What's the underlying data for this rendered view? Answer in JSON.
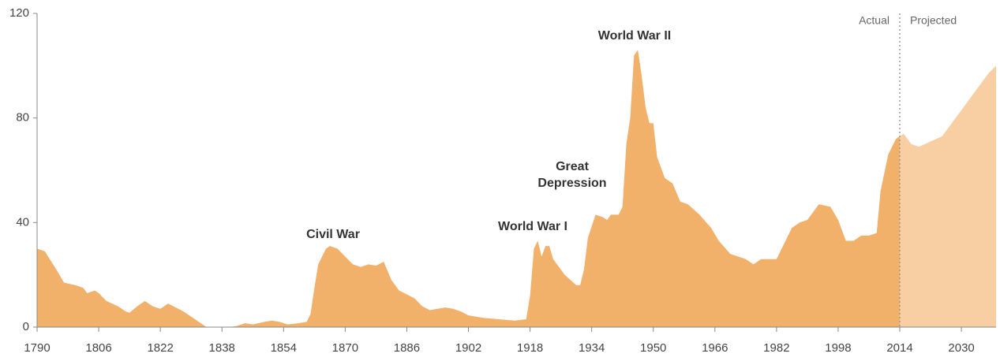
{
  "chart_data": {
    "type": "area",
    "series": [
      {
        "name": "Actual",
        "color": "#f2b16a",
        "x": [
          1790,
          1792,
          1795,
          1797,
          1800,
          1802,
          1803,
          1805,
          1806,
          1808,
          1811,
          1813,
          1814,
          1816,
          1818,
          1820,
          1822,
          1824,
          1826,
          1828,
          1830,
          1832,
          1834,
          1836,
          1840,
          1842,
          1844,
          1846,
          1849,
          1851,
          1853,
          1855,
          1858,
          1860,
          1861,
          1862,
          1863,
          1865,
          1866,
          1868,
          1870,
          1872,
          1874,
          1876,
          1878,
          1880,
          1882,
          1884,
          1886,
          1888,
          1890,
          1892,
          1894,
          1896,
          1898,
          1900,
          1902,
          1906,
          1910,
          1914,
          1917,
          1918,
          1919,
          1920,
          1921,
          1922,
          1923,
          1924,
          1927,
          1930,
          1931,
          1932,
          1933,
          1935,
          1937,
          1938,
          1939,
          1941,
          1942,
          1943,
          1944,
          1945,
          1946,
          1947,
          1948,
          1949,
          1950,
          1951,
          1953,
          1955,
          1957,
          1959,
          1962,
          1965,
          1967,
          1970,
          1974,
          1976,
          1978,
          1980,
          1982,
          1984,
          1986,
          1988,
          1990,
          1993,
          1996,
          1998,
          2000,
          2002,
          2004,
          2006,
          2008,
          2009,
          2011,
          2013,
          2014
        ],
        "values": [
          30,
          29,
          22,
          17,
          16,
          15,
          13,
          14,
          13,
          10,
          8,
          6,
          5.5,
          8,
          10,
          8,
          7,
          9,
          7.5,
          6,
          4,
          2,
          0,
          0,
          0,
          0.5,
          1.5,
          1,
          2,
          2.5,
          2,
          1,
          1.5,
          2,
          5,
          15,
          24,
          30,
          31,
          30,
          27,
          24,
          23,
          24,
          23.5,
          25,
          18,
          14,
          12.5,
          11,
          8,
          6.5,
          7,
          7.5,
          7,
          6,
          4.5,
          3.5,
          3,
          2.5,
          3,
          12,
          30,
          33,
          27,
          31,
          31,
          26,
          20,
          16,
          16,
          22,
          34,
          43,
          42,
          41,
          43,
          43,
          46,
          70,
          80,
          104,
          106,
          96,
          84,
          78,
          78,
          65,
          57,
          55,
          48,
          47,
          43,
          38,
          33,
          28,
          26,
          24,
          26,
          26,
          26,
          32,
          38,
          40,
          41,
          47,
          46,
          41,
          33,
          33,
          35,
          35,
          36,
          52,
          66,
          72,
          73
        ]
      },
      {
        "name": "Projected",
        "color": "#f7cfa2",
        "x": [
          2014,
          2015,
          2017,
          2019,
          2022,
          2025,
          2028,
          2031,
          2034,
          2037,
          2039
        ],
        "values": [
          73,
          74,
          70,
          69,
          71,
          73,
          79,
          85,
          91,
          97,
          100
        ]
      }
    ],
    "divider": 2014,
    "annotations": [
      "Civil War",
      "World War I",
      "Great Depression",
      "World War II"
    ],
    "xlim": [
      1790,
      2039
    ],
    "xticks": [
      1790,
      1806,
      1822,
      1838,
      1854,
      1870,
      1886,
      1902,
      1918,
      1934,
      1950,
      1966,
      1982,
      1998,
      2014,
      2030
    ],
    "ylim": [
      0,
      120
    ],
    "yticks": [
      0,
      40,
      80,
      120
    ]
  }
}
